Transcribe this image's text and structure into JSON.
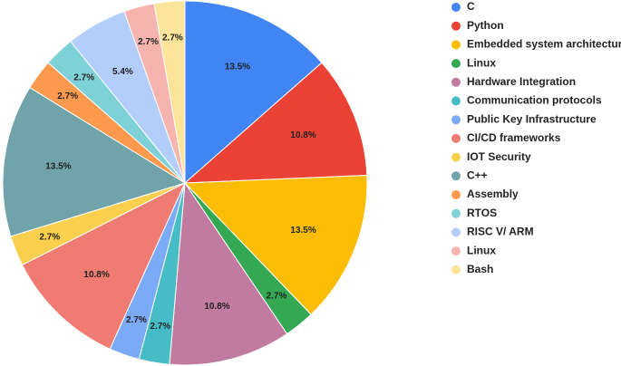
{
  "chart_data": {
    "type": "pie",
    "title": "",
    "legend_position": "right",
    "slices": [
      {
        "label": "C",
        "value": 13.5,
        "display": "13.5%",
        "color": "#4285F4"
      },
      {
        "label": "Python",
        "value": 10.8,
        "display": "10.8%",
        "color": "#EA4335"
      },
      {
        "label": "Embedded system architecture",
        "value": 13.5,
        "display": "13.5%",
        "color": "#FBBC04"
      },
      {
        "label": "Linux",
        "value": 2.7,
        "display": "2.7%",
        "color": "#34A853"
      },
      {
        "label": "Hardware Integration",
        "value": 10.8,
        "display": "10.8%",
        "color": "#C27BA0"
      },
      {
        "label": "Communication protocols",
        "value": 2.7,
        "display": "2.7%",
        "color": "#46BDC6"
      },
      {
        "label": "Public Key Infrastructure",
        "value": 2.7,
        "display": "2.7%",
        "color": "#7BAAF7"
      },
      {
        "label": "CI/CD frameworks",
        "value": 10.8,
        "display": "10.8%",
        "color": "#F07B72"
      },
      {
        "label": "IOT Security",
        "value": 2.7,
        "display": "2.7%",
        "color": "#FCD04F"
      },
      {
        "label": "C++",
        "value": 13.5,
        "display": "13.5%",
        "color": "#71A3AB"
      },
      {
        "label": "Assembly",
        "value": 2.7,
        "display": "2.7%",
        "color": "#FF994D"
      },
      {
        "label": "RTOS",
        "value": 2.7,
        "display": "2.7%",
        "color": "#7ED1D7"
      },
      {
        "label": "RISC V/ ARM",
        "value": 5.4,
        "display": "5.4%",
        "color": "#B3CEFB"
      },
      {
        "label": "Linux",
        "value": 2.7,
        "display": "2.7%",
        "color": "#F7B4AE"
      },
      {
        "label": "Bash",
        "value": 2.7,
        "display": "2.7%",
        "color": "#FDE49B"
      }
    ]
  }
}
